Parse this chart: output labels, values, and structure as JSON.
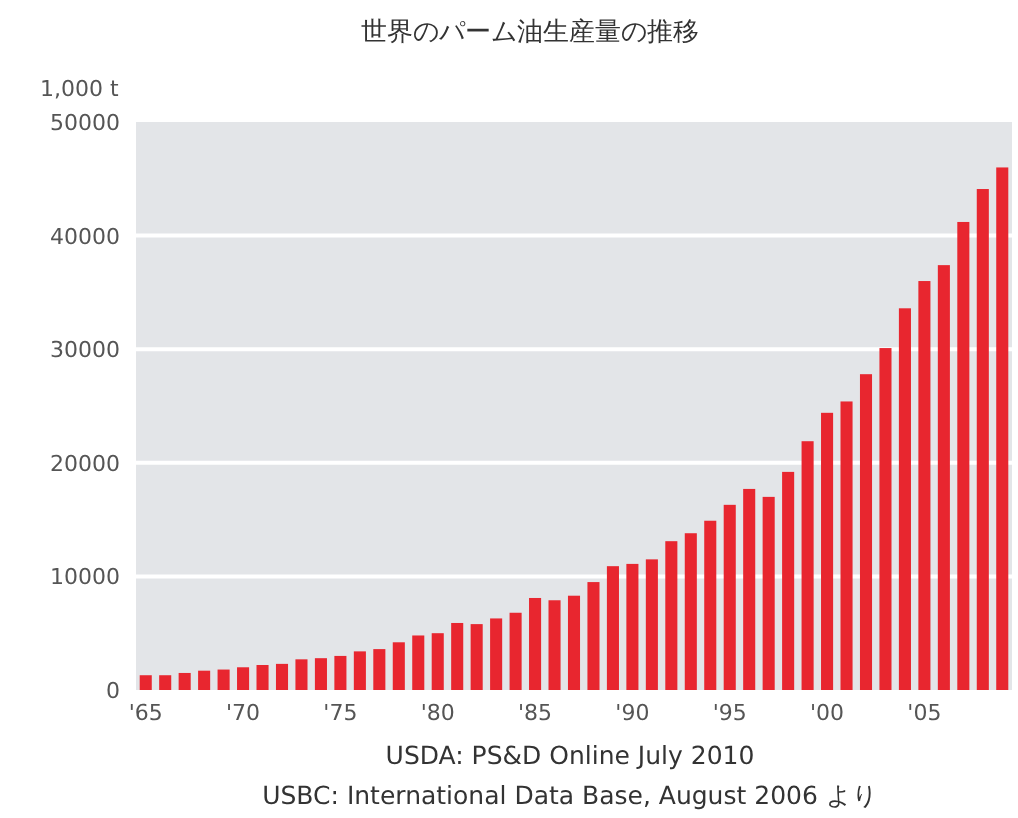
{
  "chart_data": {
    "type": "bar",
    "title": "世界のパーム油生産量の推移",
    "ylabel": "1,000 t",
    "categories": [
      "'65",
      null,
      null,
      null,
      null,
      "'70",
      null,
      null,
      null,
      null,
      "'75",
      null,
      null,
      null,
      null,
      "'80",
      null,
      null,
      null,
      null,
      "'85",
      null,
      null,
      null,
      null,
      "'90",
      null,
      null,
      null,
      null,
      "'95",
      null,
      null,
      null,
      null,
      "'00",
      null,
      null,
      null,
      null,
      "'05",
      null,
      null,
      null,
      null
    ],
    "values": [
      1300,
      1300,
      1500,
      1700,
      1800,
      2000,
      2200,
      2300,
      2700,
      2800,
      3000,
      3400,
      3600,
      4200,
      4800,
      5000,
      5900,
      5800,
      6300,
      6800,
      8100,
      7900,
      8300,
      9500,
      10900,
      11100,
      11500,
      13100,
      13800,
      14900,
      16300,
      17700,
      17000,
      19200,
      21900,
      24400,
      25400,
      27800,
      30100,
      33600,
      36000,
      37400,
      41200,
      44100,
      46000
    ],
    "color": "#e8262f",
    "ylim": [
      0,
      50000
    ],
    "yticks": [
      0,
      10000,
      20000,
      30000,
      40000,
      50000
    ],
    "grid": "y",
    "annotations": [
      "USDA: PS&D Online July 2010",
      "USBC: International Data Base, August 2006 より"
    ]
  }
}
